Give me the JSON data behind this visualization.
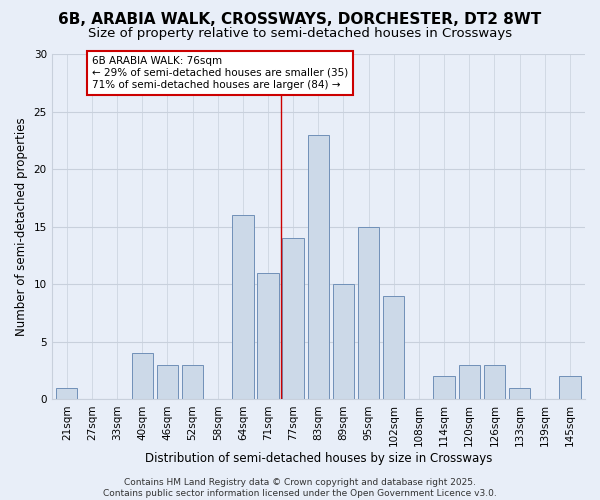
{
  "title": "6B, ARABIA WALK, CROSSWAYS, DORCHESTER, DT2 8WT",
  "subtitle": "Size of property relative to semi-detached houses in Crossways",
  "xlabel": "Distribution of semi-detached houses by size in Crossways",
  "ylabel": "Number of semi-detached properties",
  "categories": [
    "21sqm",
    "27sqm",
    "33sqm",
    "40sqm",
    "46sqm",
    "52sqm",
    "58sqm",
    "64sqm",
    "71sqm",
    "77sqm",
    "83sqm",
    "89sqm",
    "95sqm",
    "102sqm",
    "108sqm",
    "114sqm",
    "120sqm",
    "126sqm",
    "133sqm",
    "139sqm",
    "145sqm"
  ],
  "values": [
    1,
    0,
    0,
    4,
    3,
    3,
    0,
    16,
    11,
    14,
    23,
    10,
    15,
    9,
    0,
    2,
    3,
    3,
    1,
    0,
    2
  ],
  "bar_color": "#ccd9e8",
  "bar_edge_color": "#7090b8",
  "vline_x_index": 8.5,
  "vline_color": "#cc0000",
  "annotation_text": "6B ARABIA WALK: 76sqm\n← 29% of semi-detached houses are smaller (35)\n71% of semi-detached houses are larger (84) →",
  "annotation_box_color": "#ffffff",
  "annotation_box_edge": "#cc0000",
  "ylim": [
    0,
    30
  ],
  "yticks": [
    0,
    5,
    10,
    15,
    20,
    25,
    30
  ],
  "footer": "Contains HM Land Registry data © Crown copyright and database right 2025.\nContains public sector information licensed under the Open Government Licence v3.0.",
  "background_color": "#e8eef8",
  "grid_color": "#c8d0dc",
  "title_fontsize": 11,
  "subtitle_fontsize": 9.5,
  "axis_label_fontsize": 8.5,
  "tick_fontsize": 7.5,
  "annotation_fontsize": 7.5,
  "footer_fontsize": 6.5
}
